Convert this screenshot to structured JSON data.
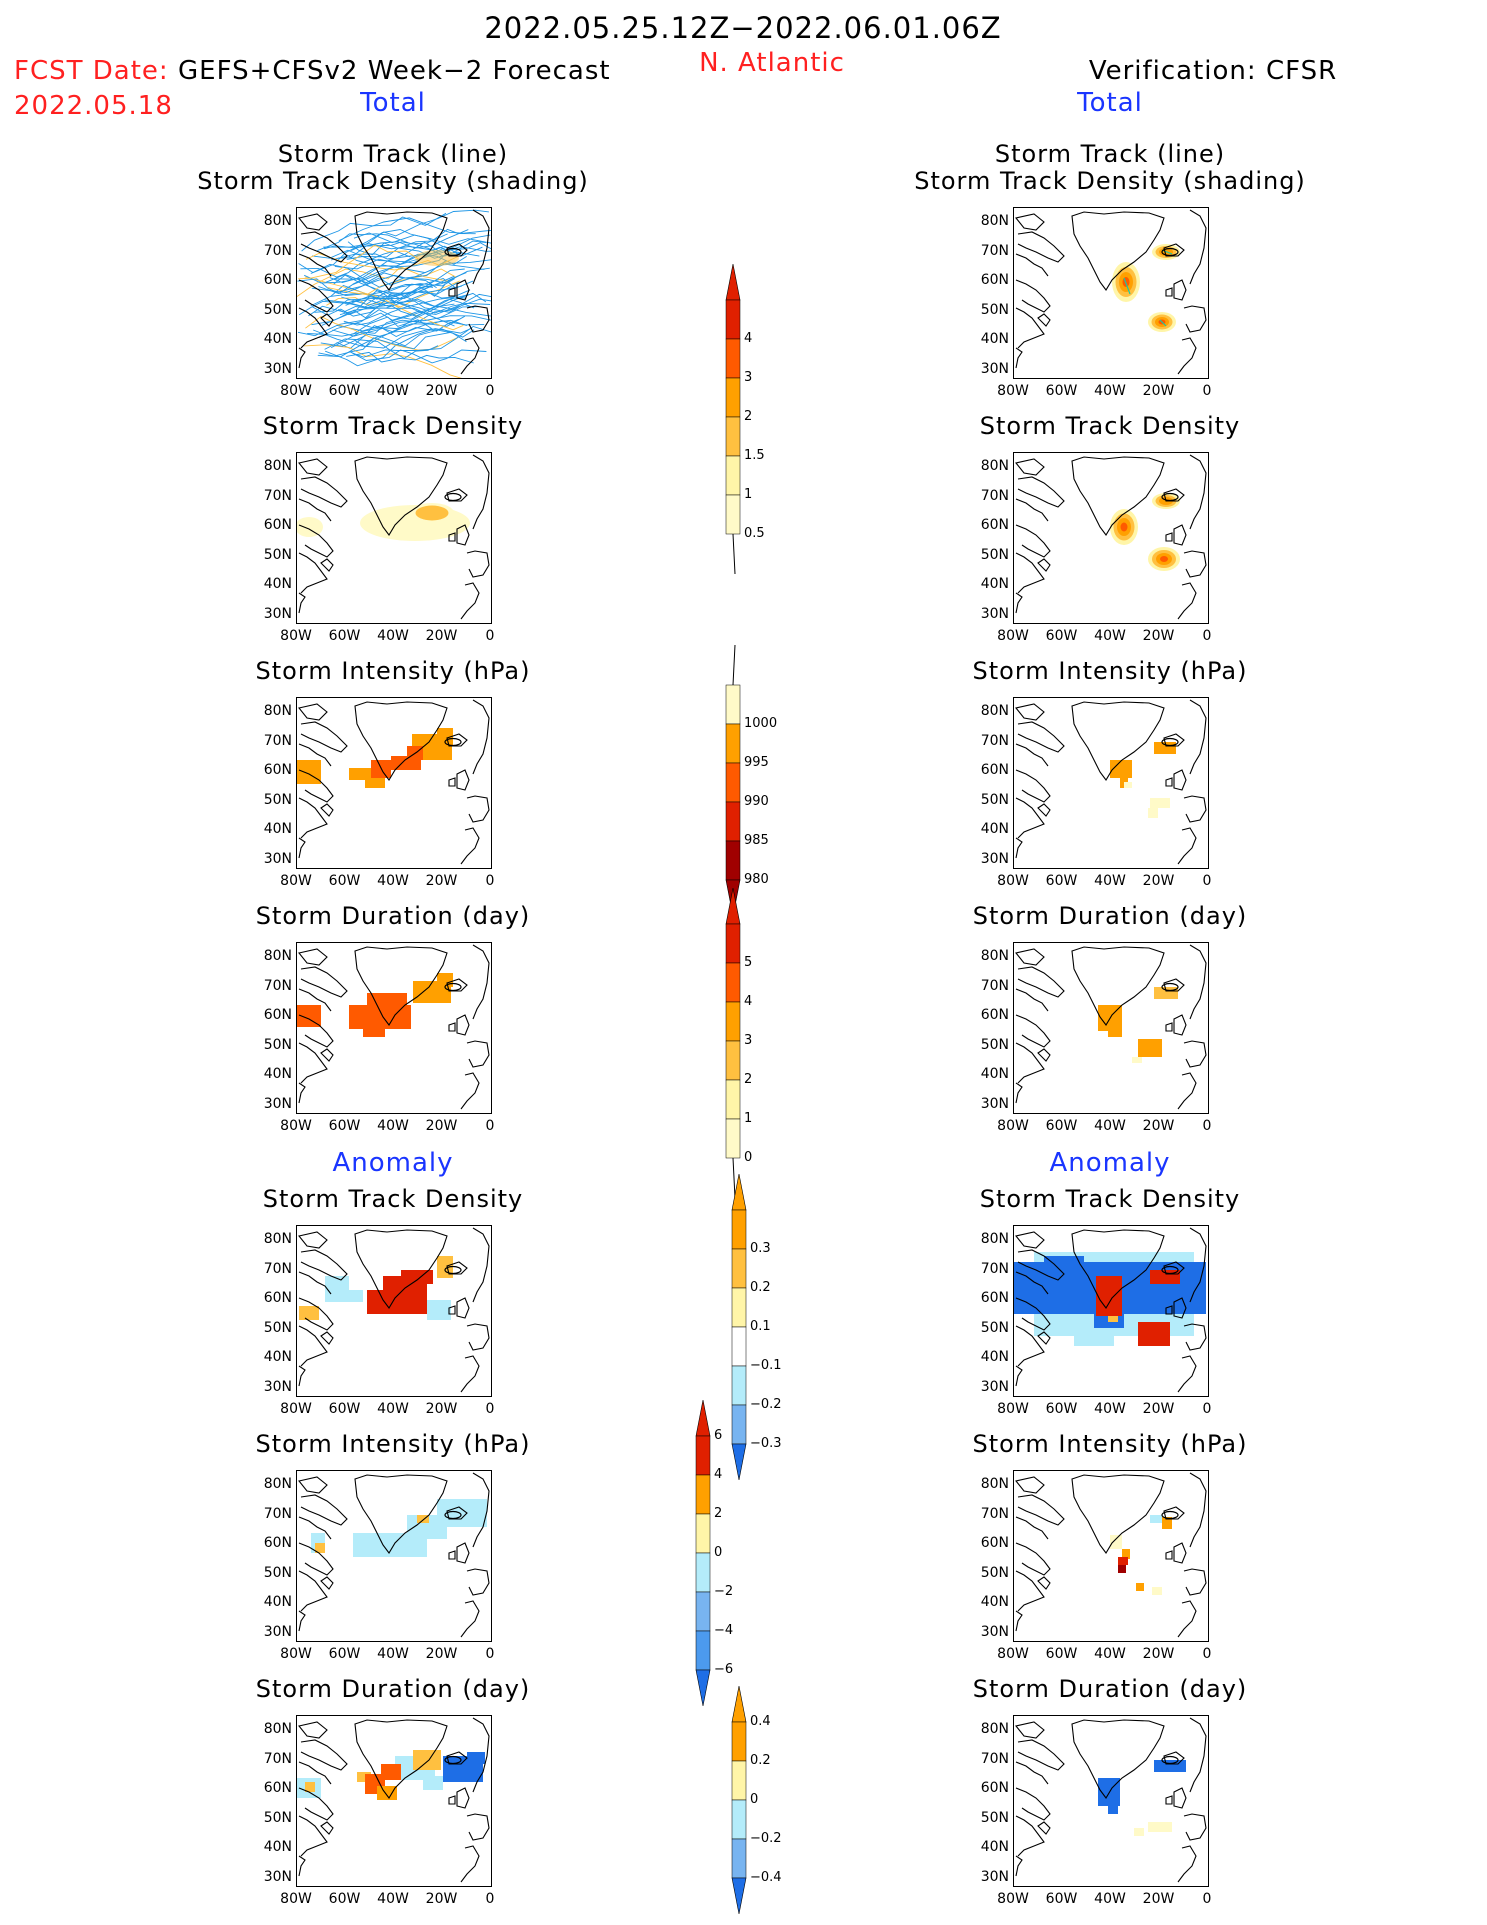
{
  "header": {
    "period": "2022.05.25.12Z−2022.06.01.06Z",
    "fcst_label": "FCST Date:",
    "fcst_date": "2022.05.18",
    "model": "GEFS+CFSv2 Week−2 Forecast",
    "region": "N. Atlantic",
    "verification": "Verification: CFSR"
  },
  "columns": {
    "left_total": "Total",
    "right_total": "Total",
    "left_anomaly": "Anomaly",
    "right_anomaly": "Anomaly"
  },
  "panel_titles": {
    "track_line": "Storm Track (line)",
    "track_shading": "Storm Track Density (shading)",
    "density": "Storm Track Density",
    "intensity": "Storm Intensity (hPa)",
    "duration": "Storm Duration (day)"
  },
  "axes": {
    "y_ticks": [
      "80N",
      "70N",
      "60N",
      "50N",
      "40N",
      "30N"
    ],
    "x_ticks": [
      "80W",
      "60W",
      "40W",
      "20W",
      "0"
    ]
  },
  "colorbars": {
    "density_total": [
      "4",
      "3",
      "2",
      "1.5",
      "1",
      "0.5"
    ],
    "intensity_total": [
      "1000",
      "995",
      "990",
      "985",
      "980"
    ],
    "duration_total": [
      "5",
      "4",
      "3",
      "2",
      "1",
      "0"
    ],
    "density_anom": [
      "0.3",
      "0.2",
      "0.1",
      "−0.1",
      "−0.2",
      "−0.3"
    ],
    "intensity_anom": [
      "6",
      "4",
      "2",
      "0",
      "−2",
      "−4",
      "−6"
    ],
    "duration_anom": [
      "0.4",
      "0.2",
      "0",
      "−0.2",
      "−0.4"
    ]
  },
  "colors": {
    "dark_red": "#a00000",
    "red": "#e02000",
    "orange_red": "#ff5a00",
    "orange": "#ffa000",
    "light_orange": "#ffc040",
    "light_yellow": "#fff5a8",
    "pale_yellow": "#fffac8",
    "light_blue": "#b4ecfa",
    "mid_blue": "#78b4f0",
    "blue": "#1e6ee6",
    "track_blue": "#1e96e6"
  }
}
